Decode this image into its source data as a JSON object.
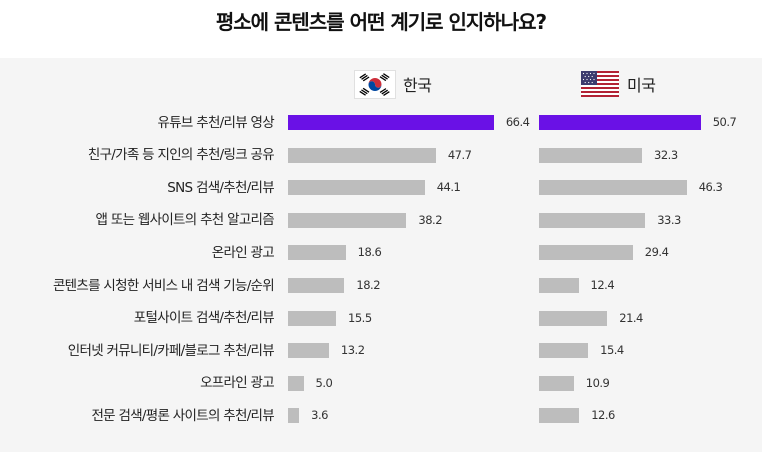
{
  "title": "평소에 콘텐츠를 어떤 계기로 인지하나요?",
  "countries": [
    {
      "name": "한국",
      "flag": "korea-flag-icon"
    },
    {
      "name": "미국",
      "flag": "usa-flag-icon"
    }
  ],
  "colors": {
    "highlight": "#6a11e6",
    "bar": "#bdbdbd",
    "panel": "#f5f5f5"
  },
  "chart_data": {
    "type": "bar",
    "orientation": "horizontal",
    "title": "평소에 콘텐츠를 어떤 계기로 인지하나요?",
    "categories": [
      "유튜브 추천/리뷰 영상",
      "친구/가족 등 지인의 추천/링크 공유",
      "SNS 검색/추천/리뷰",
      "앱 또는 웹사이트의 추천 알고리즘",
      "온라인 광고",
      "콘텐츠를 시청한 서비스 내 검색 기능/순위",
      "포털사이트 검색/추천/리뷰",
      "인터넷 커뮤니티/카페/블로그 추천/리뷰",
      "오프라인 광고",
      "전문 검색/평론 사이트의 추천/리뷰"
    ],
    "series": [
      {
        "name": "한국",
        "values": [
          66.4,
          47.7,
          44.1,
          38.2,
          18.6,
          18.2,
          15.5,
          13.2,
          5.0,
          3.6
        ],
        "highlight_index": 0
      },
      {
        "name": "미국",
        "values": [
          50.7,
          32.3,
          46.3,
          33.3,
          29.4,
          12.4,
          21.4,
          15.4,
          10.9,
          12.6
        ],
        "highlight_index": 0
      }
    ],
    "value_labels": [
      [
        "66.4",
        "47.7",
        "44.1",
        "38.2",
        "18.6",
        "18.2",
        "15.5",
        "13.2",
        "5.0",
        "3.6"
      ],
      [
        "50.7",
        "32.3",
        "46.3",
        "33.3",
        "29.4",
        "12.4",
        "21.4",
        "15.4",
        "10.9",
        "12.6"
      ]
    ],
    "xlim": [
      0,
      100
    ],
    "grid": false,
    "legend": "none"
  }
}
